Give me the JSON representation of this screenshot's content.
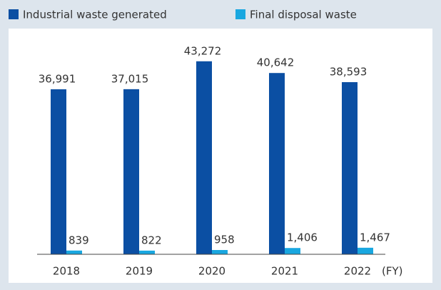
{
  "chart_data": {
    "type": "bar",
    "categories": [
      "2018",
      "2019",
      "2020",
      "2021",
      "2022"
    ],
    "x_label": "(FY)",
    "series": [
      {
        "name": "Industrial waste generated",
        "color": "#0b4fa3",
        "values": [
          36991,
          37015,
          43272,
          40642,
          38593
        ],
        "value_labels": [
          "36,991",
          "37,015",
          "43,272",
          "40,642",
          "38,593"
        ]
      },
      {
        "name": "Final disposal waste",
        "color": "#19a7e0",
        "values": [
          839,
          822,
          958,
          1406,
          1467
        ],
        "value_labels": [
          "839",
          "822",
          "958",
          "1,406",
          "1,467"
        ]
      }
    ],
    "ylim": [
      0,
      45000
    ],
    "legend": "top-left"
  }
}
